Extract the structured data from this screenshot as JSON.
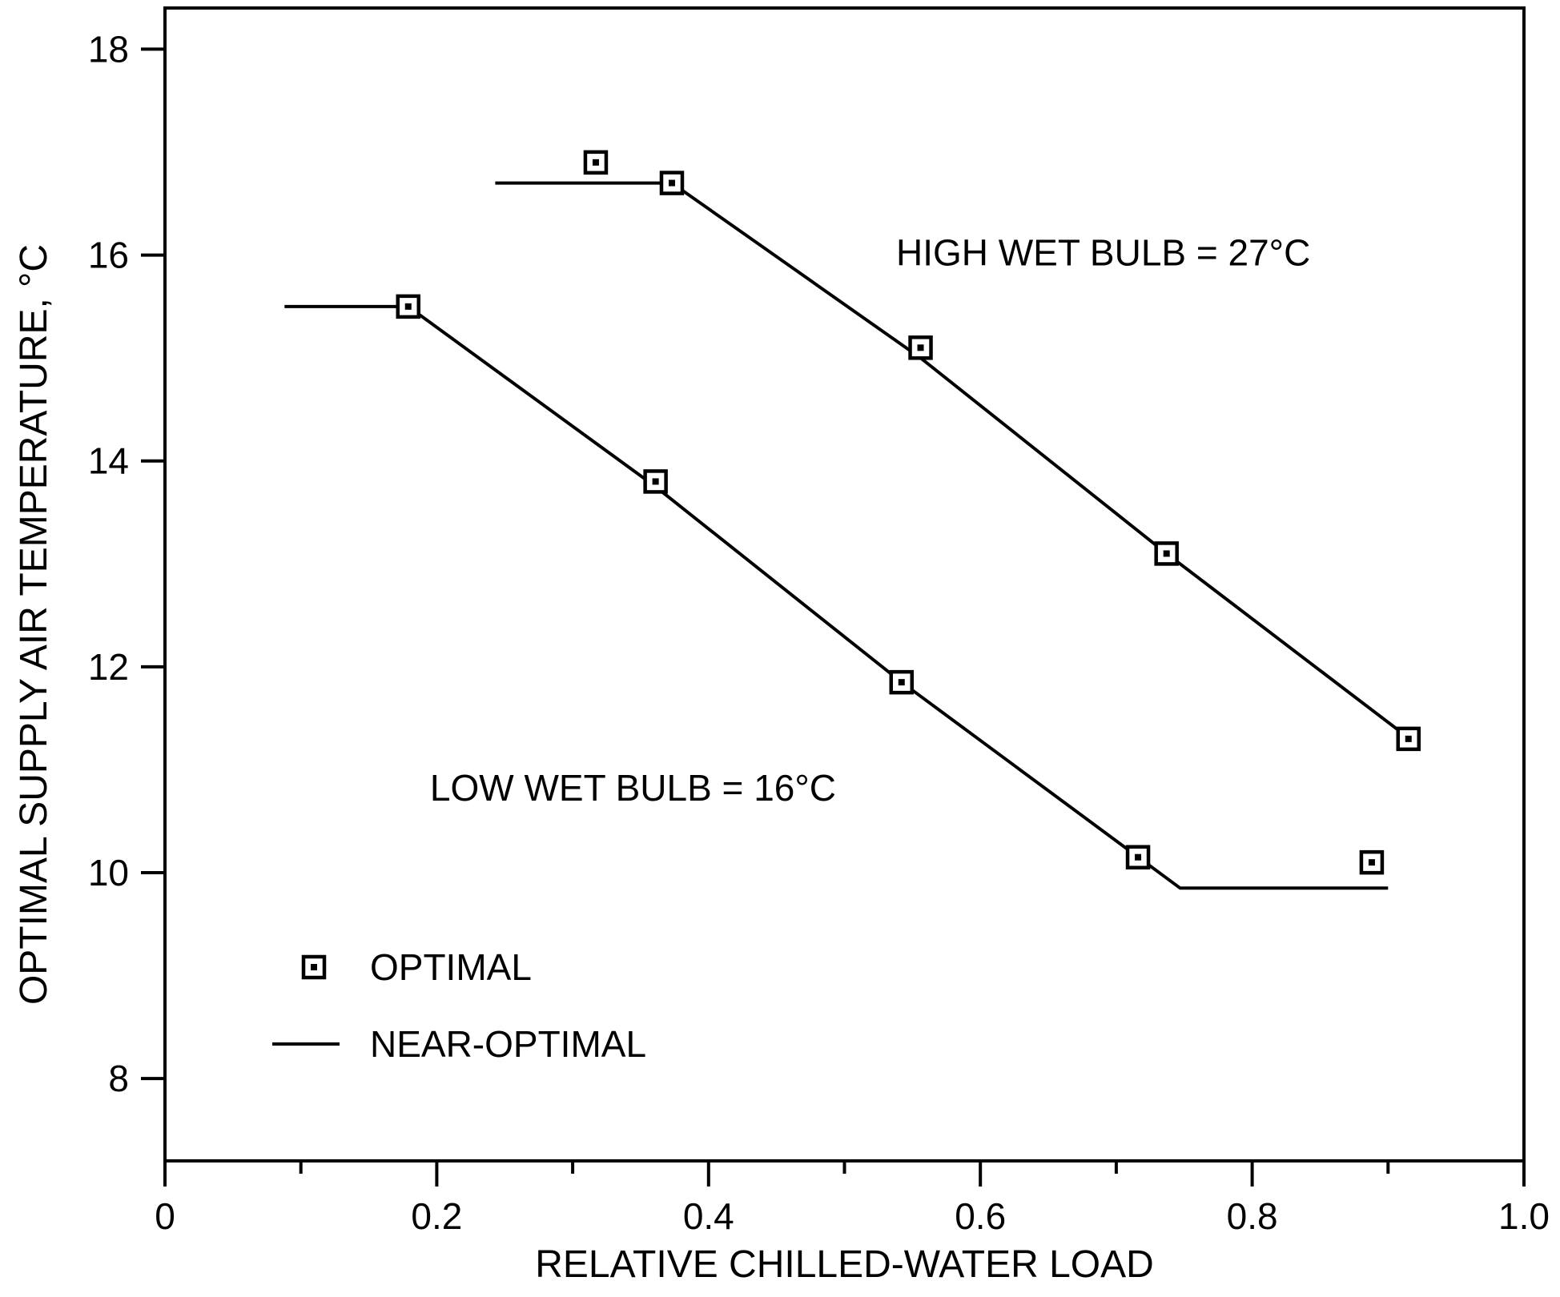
{
  "chart_data": {
    "type": "line",
    "xlabel": "RELATIVE CHILLED-WATER LOAD",
    "ylabel": "OPTIMAL SUPPLY AIR TEMPERATURE, °C",
    "xlim": [
      0,
      1.0
    ],
    "ylim": [
      7.2,
      18.4
    ],
    "x_ticks": [
      {
        "value": 0,
        "label": "0"
      },
      {
        "value": 0.2,
        "label": "0.2"
      },
      {
        "value": 0.4,
        "label": "0.4"
      },
      {
        "value": 0.6,
        "label": "0.6"
      },
      {
        "value": 0.8,
        "label": "0.8"
      },
      {
        "value": 1.0,
        "label": "1.0"
      }
    ],
    "x_minor_ticks": [
      0.1,
      0.3,
      0.5,
      0.7,
      0.9
    ],
    "y_ticks": [
      {
        "value": 8,
        "label": "8"
      },
      {
        "value": 10,
        "label": "10"
      },
      {
        "value": 12,
        "label": "12"
      },
      {
        "value": 14,
        "label": "14"
      },
      {
        "value": 16,
        "label": "16"
      },
      {
        "value": 18,
        "label": "18"
      }
    ],
    "grid": false,
    "legend_position": "bottom-left",
    "legend": [
      {
        "label": "OPTIMAL",
        "kind": "marker"
      },
      {
        "label": "NEAR-OPTIMAL",
        "kind": "line"
      }
    ],
    "annotations": [
      {
        "text": "HIGH WET BULB = 27°C",
        "x": 0.538,
        "y": 15.9
      },
      {
        "text": "LOW WET BULB = 16°C",
        "x": 0.195,
        "y": 10.7
      }
    ],
    "series": [
      {
        "condition": "HIGH WET BULB = 27°C",
        "optimal_points": [
          {
            "x": 0.317,
            "y": 16.9
          },
          {
            "x": 0.373,
            "y": 16.7
          },
          {
            "x": 0.556,
            "y": 15.1
          },
          {
            "x": 0.737,
            "y": 13.1
          },
          {
            "x": 0.915,
            "y": 11.3
          }
        ],
        "near_optimal_line": [
          {
            "x": 0.243,
            "y": 16.7
          },
          {
            "x": 0.373,
            "y": 16.7
          },
          {
            "x": 0.556,
            "y": 15.0
          },
          {
            "x": 0.737,
            "y": 13.1
          },
          {
            "x": 0.911,
            "y": 11.35
          }
        ]
      },
      {
        "condition": "LOW WET BULB = 16°C",
        "optimal_points": [
          {
            "x": 0.179,
            "y": 15.5
          },
          {
            "x": 0.361,
            "y": 13.8
          },
          {
            "x": 0.542,
            "y": 11.85
          },
          {
            "x": 0.716,
            "y": 10.15
          },
          {
            "x": 0.888,
            "y": 10.1
          }
        ],
        "near_optimal_line": [
          {
            "x": 0.088,
            "y": 15.5
          },
          {
            "x": 0.179,
            "y": 15.5
          },
          {
            "x": 0.361,
            "y": 13.75
          },
          {
            "x": 0.542,
            "y": 11.85
          },
          {
            "x": 0.747,
            "y": 9.85
          },
          {
            "x": 0.9,
            "y": 9.85
          }
        ]
      }
    ]
  }
}
